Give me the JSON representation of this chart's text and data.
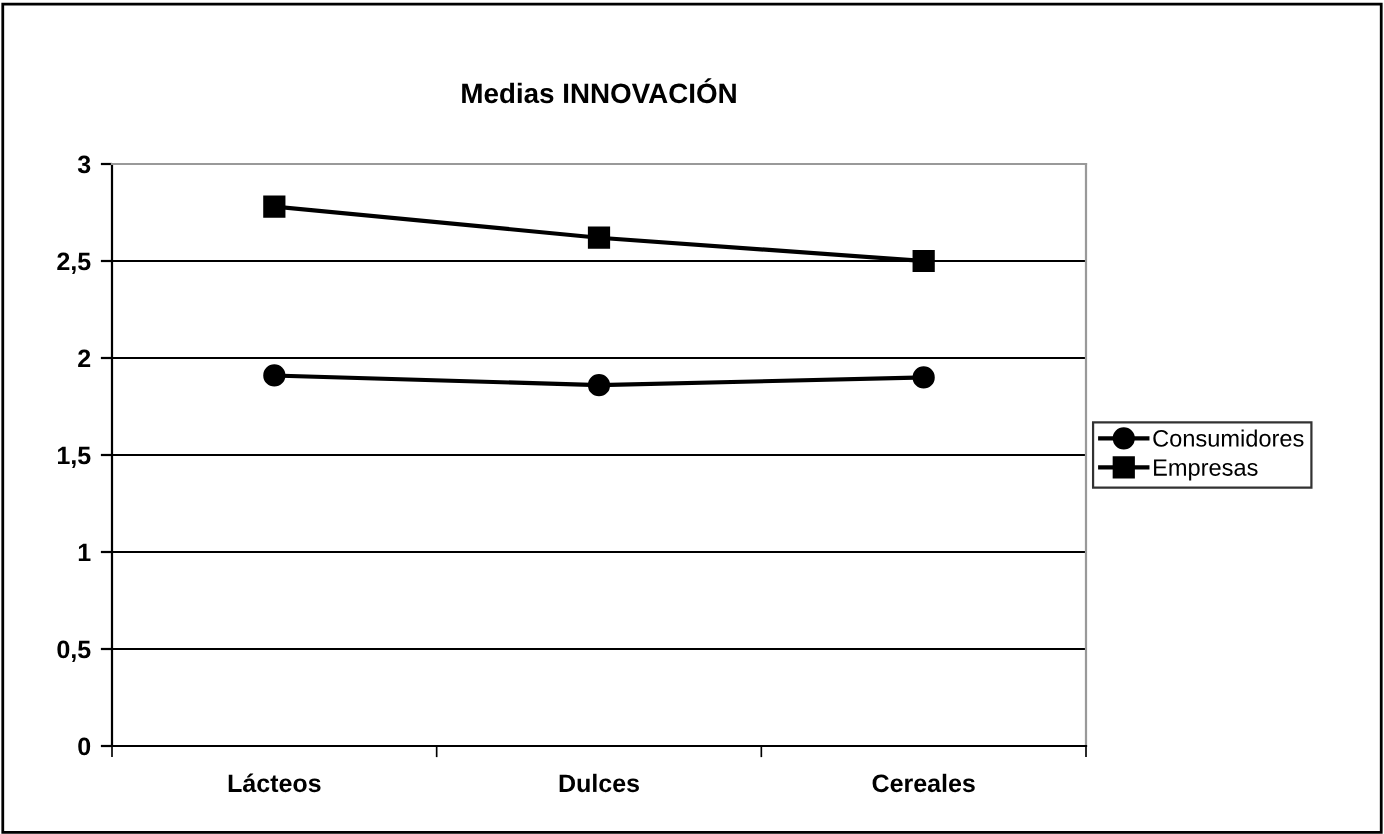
{
  "chart_data": {
    "type": "line",
    "title": "Medias INNOVACIÓN",
    "categories": [
      "Lácteos",
      "Dulces",
      "Cereales"
    ],
    "series": [
      {
        "name": "Consumidores",
        "color": "#000000",
        "marker": "circle",
        "values": [
          1.91,
          1.86,
          1.9
        ]
      },
      {
        "name": "Empresas",
        "color": "#000000",
        "marker": "square",
        "values": [
          2.78,
          2.62,
          2.5
        ]
      }
    ],
    "ylim": [
      0,
      3
    ],
    "yticks": [
      0,
      {
        "value": 0.5,
        "label": "0,5"
      },
      1,
      {
        "value": 1.5,
        "label": "1,5"
      },
      2,
      {
        "value": 2.5,
        "label": "2,5"
      },
      3
    ],
    "grid": "y",
    "legend": "right",
    "line_style": "solid"
  }
}
